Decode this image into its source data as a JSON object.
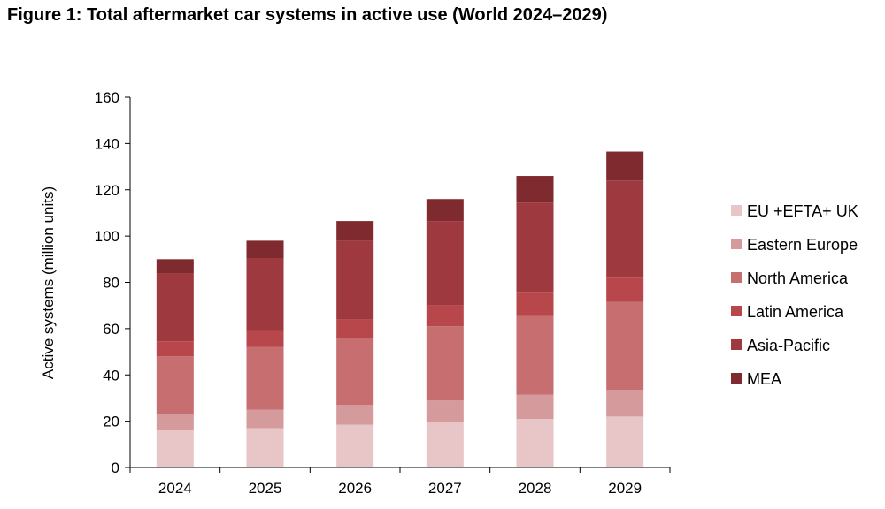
{
  "chart_data": {
    "type": "bar",
    "stacked": true,
    "title": "Figure 1: Total aftermarket car systems in active use (World 2024–2029)",
    "xlabel": "",
    "ylabel": "Active systems (million units)",
    "ylim": [
      0,
      160
    ],
    "yticks": [
      0,
      20,
      40,
      60,
      80,
      100,
      120,
      140,
      160
    ],
    "categories": [
      "2024",
      "2025",
      "2026",
      "2027",
      "2028",
      "2029"
    ],
    "series": [
      {
        "name": "EU +EFTA+ UK",
        "color": "#e8c6c7",
        "values": [
          16,
          17,
          18.5,
          19.5,
          21,
          22
        ]
      },
      {
        "name": "Eastern Europe",
        "color": "#d59a9c",
        "values": [
          7,
          8,
          8.5,
          9.5,
          10.5,
          11.5
        ]
      },
      {
        "name": "North America",
        "color": "#c76e70",
        "values": [
          25,
          27,
          29,
          32,
          34,
          38
        ]
      },
      {
        "name": "Latin America",
        "color": "#b8474b",
        "values": [
          6.5,
          7,
          8,
          9,
          10,
          10.5
        ]
      },
      {
        "name": "Asia-Pacific",
        "color": "#9e3a3f",
        "values": [
          29.5,
          31.5,
          34,
          36.5,
          39,
          42
        ]
      },
      {
        "name": "MEA",
        "color": "#7f2a2e",
        "values": [
          6,
          7.5,
          8.5,
          9.5,
          11.5,
          12.5
        ]
      }
    ],
    "legend_position": "right"
  }
}
